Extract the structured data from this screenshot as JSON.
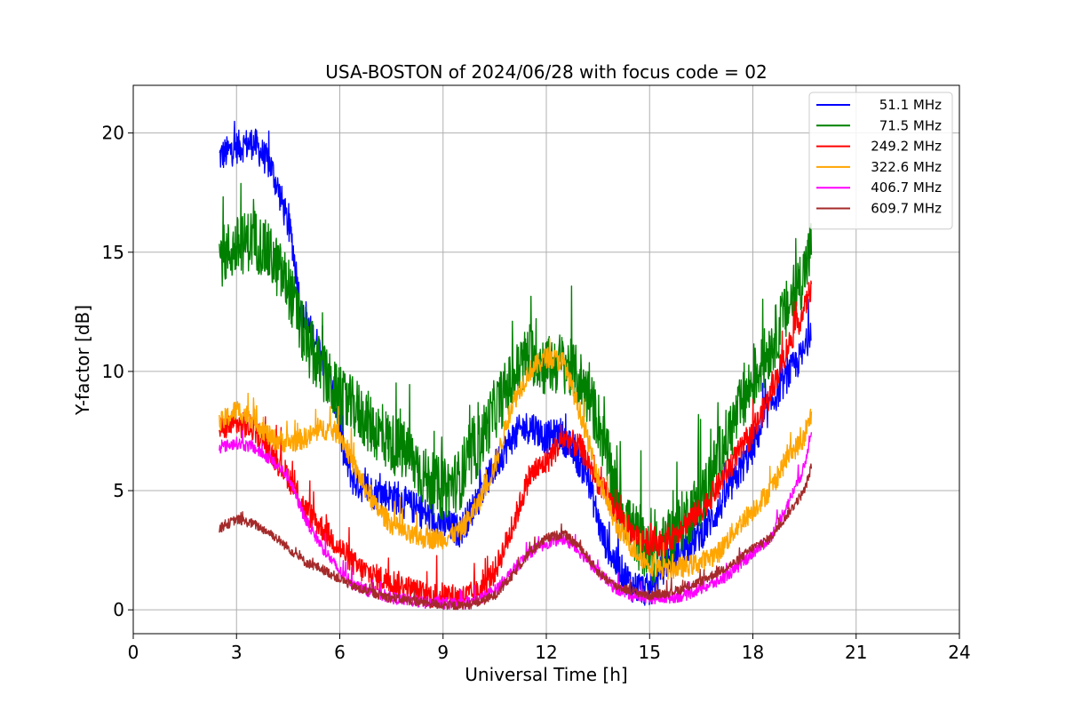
{
  "chart_data": {
    "type": "line",
    "title": "USA-BOSTON of 2024/06/28 with focus code = 02",
    "xlabel": "Universal Time [h]",
    "ylabel": "Y-factor [dB]",
    "xlim": [
      0,
      24
    ],
    "ylim": [
      -1,
      22
    ],
    "xticks": [
      "0",
      "3",
      "6",
      "9",
      "12",
      "15",
      "18",
      "21",
      "24"
    ],
    "yticks": [
      "0",
      "5",
      "10",
      "15",
      "20"
    ],
    "grid": true,
    "legend_position": "top-right",
    "series": [
      {
        "name": "51.1 MHz",
        "color": "#0000ff",
        "noise": 0.7,
        "points": [
          [
            2.5,
            19.0
          ],
          [
            3.0,
            19.4
          ],
          [
            3.5,
            19.6
          ],
          [
            4.0,
            18.6
          ],
          [
            4.3,
            17.2
          ],
          [
            4.6,
            15.6
          ],
          [
            4.9,
            12.3
          ],
          [
            5.3,
            11.3
          ],
          [
            5.6,
            10.2
          ],
          [
            5.9,
            8.6
          ],
          [
            6.1,
            6.6
          ],
          [
            6.4,
            5.4
          ],
          [
            7.0,
            4.9
          ],
          [
            7.5,
            4.8
          ],
          [
            8.0,
            4.4
          ],
          [
            8.5,
            4.0
          ],
          [
            9.0,
            3.6
          ],
          [
            9.5,
            3.3
          ],
          [
            10.0,
            4.6
          ],
          [
            10.5,
            6.0
          ],
          [
            11.0,
            7.2
          ],
          [
            11.3,
            7.6
          ],
          [
            11.6,
            7.7
          ],
          [
            12.0,
            7.2
          ],
          [
            12.4,
            7.4
          ],
          [
            12.8,
            6.6
          ],
          [
            13.2,
            5.6
          ],
          [
            13.6,
            3.2
          ],
          [
            14.0,
            2.0
          ],
          [
            14.5,
            1.0
          ],
          [
            15.0,
            0.8
          ],
          [
            15.5,
            2.0
          ],
          [
            16.0,
            2.6
          ],
          [
            16.5,
            3.2
          ],
          [
            17.0,
            4.2
          ],
          [
            17.5,
            5.5
          ],
          [
            18.0,
            6.8
          ],
          [
            18.5,
            8.6
          ],
          [
            19.0,
            9.8
          ],
          [
            19.5,
            10.8
          ],
          [
            19.7,
            12.0
          ]
        ]
      },
      {
        "name": "71.5 MHz",
        "color": "#008000",
        "noise": 1.3,
        "points": [
          [
            2.5,
            14.8
          ],
          [
            3.0,
            15.2
          ],
          [
            3.5,
            15.6
          ],
          [
            4.0,
            14.8
          ],
          [
            4.5,
            13.6
          ],
          [
            5.0,
            11.2
          ],
          [
            5.5,
            10.0
          ],
          [
            6.0,
            8.8
          ],
          [
            6.5,
            8.4
          ],
          [
            7.0,
            7.6
          ],
          [
            7.5,
            7.0
          ],
          [
            8.0,
            6.5
          ],
          [
            8.5,
            5.5
          ],
          [
            9.0,
            5.0
          ],
          [
            9.5,
            5.5
          ],
          [
            10.0,
            6.8
          ],
          [
            10.5,
            8.4
          ],
          [
            11.0,
            9.6
          ],
          [
            11.5,
            10.8
          ],
          [
            12.0,
            10.2
          ],
          [
            12.5,
            10.4
          ],
          [
            13.0,
            9.6
          ],
          [
            13.5,
            8.0
          ],
          [
            14.0,
            5.0
          ],
          [
            14.5,
            3.4
          ],
          [
            15.0,
            2.2
          ],
          [
            15.5,
            2.8
          ],
          [
            16.0,
            3.8
          ],
          [
            16.5,
            4.6
          ],
          [
            17.0,
            6.4
          ],
          [
            17.5,
            8.0
          ],
          [
            18.0,
            9.6
          ],
          [
            18.5,
            11.0
          ],
          [
            19.0,
            12.6
          ],
          [
            19.5,
            14.2
          ],
          [
            19.7,
            15.2
          ]
        ]
      },
      {
        "name": "249.2 MHz",
        "color": "#ff0000",
        "noise": 0.55,
        "points": [
          [
            2.5,
            7.6
          ],
          [
            3.0,
            7.8
          ],
          [
            3.5,
            7.6
          ],
          [
            4.0,
            6.6
          ],
          [
            4.5,
            5.6
          ],
          [
            5.0,
            4.2
          ],
          [
            5.5,
            3.4
          ],
          [
            6.0,
            2.6
          ],
          [
            6.5,
            1.8
          ],
          [
            7.0,
            1.4
          ],
          [
            7.5,
            1.2
          ],
          [
            8.0,
            0.9
          ],
          [
            8.5,
            0.6
          ],
          [
            9.0,
            0.6
          ],
          [
            9.5,
            0.5
          ],
          [
            10.0,
            0.7
          ],
          [
            10.5,
            1.6
          ],
          [
            11.0,
            3.4
          ],
          [
            11.5,
            5.6
          ],
          [
            12.0,
            6.2
          ],
          [
            12.5,
            7.2
          ],
          [
            13.0,
            6.8
          ],
          [
            13.5,
            5.4
          ],
          [
            14.0,
            4.2
          ],
          [
            14.5,
            3.2
          ],
          [
            15.0,
            2.8
          ],
          [
            15.5,
            2.8
          ],
          [
            16.0,
            3.6
          ],
          [
            16.5,
            4.2
          ],
          [
            17.0,
            5.2
          ],
          [
            17.5,
            6.4
          ],
          [
            18.0,
            7.4
          ],
          [
            18.5,
            9.0
          ],
          [
            19.0,
            11.0
          ],
          [
            19.5,
            12.6
          ],
          [
            19.7,
            13.6
          ]
        ]
      },
      {
        "name": "322.6 MHz",
        "color": "#ffa500",
        "noise": 0.45,
        "points": [
          [
            2.5,
            7.8
          ],
          [
            3.0,
            8.4
          ],
          [
            3.5,
            8.0
          ],
          [
            4.0,
            7.2
          ],
          [
            4.5,
            7.0
          ],
          [
            5.0,
            7.2
          ],
          [
            5.5,
            7.6
          ],
          [
            6.0,
            7.4
          ],
          [
            6.5,
            5.8
          ],
          [
            7.0,
            4.4
          ],
          [
            7.5,
            3.6
          ],
          [
            8.0,
            3.1
          ],
          [
            8.5,
            3.0
          ],
          [
            9.0,
            3.0
          ],
          [
            9.5,
            3.3
          ],
          [
            10.0,
            4.4
          ],
          [
            10.5,
            6.0
          ],
          [
            11.0,
            8.6
          ],
          [
            11.5,
            10.0
          ],
          [
            12.0,
            10.6
          ],
          [
            12.5,
            10.4
          ],
          [
            13.0,
            8.2
          ],
          [
            13.5,
            5.6
          ],
          [
            14.0,
            3.6
          ],
          [
            14.5,
            2.6
          ],
          [
            15.0,
            1.9
          ],
          [
            15.5,
            1.7
          ],
          [
            16.0,
            1.8
          ],
          [
            16.5,
            2.0
          ],
          [
            17.0,
            2.4
          ],
          [
            17.5,
            3.4
          ],
          [
            18.0,
            4.2
          ],
          [
            18.5,
            5.0
          ],
          [
            19.0,
            6.4
          ],
          [
            19.5,
            7.2
          ],
          [
            19.7,
            8.2
          ]
        ]
      },
      {
        "name": "406.7 MHz",
        "color": "#ff00ff",
        "noise": 0.25,
        "points": [
          [
            2.5,
            6.8
          ],
          [
            3.0,
            7.0
          ],
          [
            3.5,
            6.8
          ],
          [
            4.0,
            6.3
          ],
          [
            4.5,
            5.6
          ],
          [
            5.0,
            3.8
          ],
          [
            5.5,
            2.6
          ],
          [
            6.0,
            1.6
          ],
          [
            6.5,
            1.0
          ],
          [
            7.0,
            0.7
          ],
          [
            7.5,
            0.5
          ],
          [
            8.0,
            0.4
          ],
          [
            8.5,
            0.3
          ],
          [
            9.0,
            0.3
          ],
          [
            9.5,
            0.2
          ],
          [
            10.0,
            0.4
          ],
          [
            10.5,
            0.8
          ],
          [
            11.0,
            1.6
          ],
          [
            11.5,
            2.4
          ],
          [
            12.0,
            2.8
          ],
          [
            12.5,
            3.0
          ],
          [
            13.0,
            2.4
          ],
          [
            13.5,
            1.6
          ],
          [
            14.0,
            0.9
          ],
          [
            14.5,
            0.6
          ],
          [
            15.0,
            0.5
          ],
          [
            15.5,
            0.5
          ],
          [
            16.0,
            0.6
          ],
          [
            16.5,
            0.9
          ],
          [
            17.0,
            1.2
          ],
          [
            17.5,
            1.7
          ],
          [
            18.0,
            2.4
          ],
          [
            18.5,
            3.0
          ],
          [
            19.0,
            4.4
          ],
          [
            19.5,
            6.0
          ],
          [
            19.7,
            7.6
          ]
        ]
      },
      {
        "name": "609.7 MHz",
        "color": "#a52a2a",
        "noise": 0.2,
        "points": [
          [
            2.5,
            3.4
          ],
          [
            3.0,
            3.8
          ],
          [
            3.5,
            3.6
          ],
          [
            4.0,
            3.2
          ],
          [
            4.5,
            2.6
          ],
          [
            5.0,
            2.0
          ],
          [
            5.5,
            1.7
          ],
          [
            6.0,
            1.3
          ],
          [
            6.5,
            0.9
          ],
          [
            7.0,
            0.7
          ],
          [
            7.5,
            0.5
          ],
          [
            8.0,
            0.4
          ],
          [
            8.5,
            0.3
          ],
          [
            9.0,
            0.2
          ],
          [
            9.5,
            0.15
          ],
          [
            10.0,
            0.3
          ],
          [
            10.5,
            0.6
          ],
          [
            11.0,
            1.4
          ],
          [
            11.5,
            2.4
          ],
          [
            12.0,
            3.0
          ],
          [
            12.5,
            3.2
          ],
          [
            13.0,
            2.6
          ],
          [
            13.5,
            1.6
          ],
          [
            14.0,
            1.0
          ],
          [
            14.5,
            0.8
          ],
          [
            15.0,
            0.6
          ],
          [
            15.5,
            0.7
          ],
          [
            16.0,
            0.9
          ],
          [
            16.5,
            1.2
          ],
          [
            17.0,
            1.6
          ],
          [
            17.5,
            2.0
          ],
          [
            18.0,
            2.6
          ],
          [
            18.5,
            3.0
          ],
          [
            19.0,
            4.0
          ],
          [
            19.5,
            5.0
          ],
          [
            19.7,
            6.0
          ]
        ]
      }
    ]
  }
}
